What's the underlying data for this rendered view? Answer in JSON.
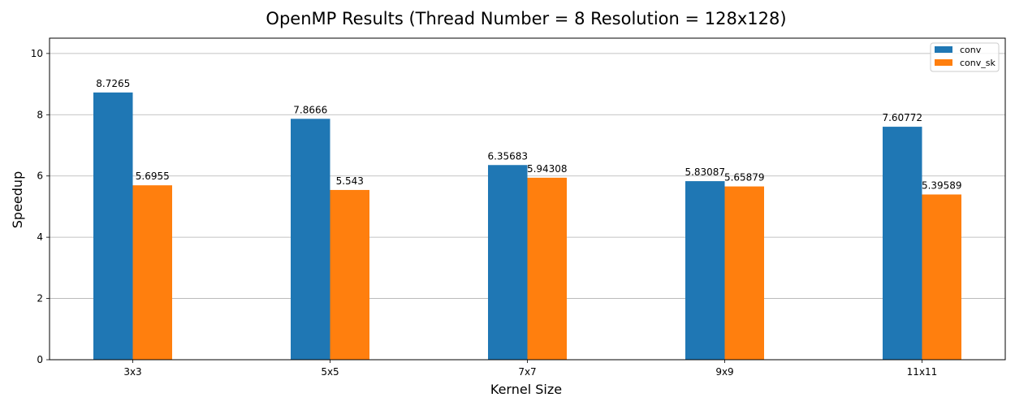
{
  "chart_data": {
    "type": "bar",
    "title": "OpenMP Results (Thread Number = 8 Resolution = 128x128)",
    "xlabel": "Kernel Size",
    "ylabel": "Speedup",
    "categories": [
      "3x3",
      "5x5",
      "7x7",
      "9x9",
      "11x11"
    ],
    "series": [
      {
        "name": "conv",
        "color": "#1f77b4",
        "values": [
          8.7265,
          7.8666,
          6.35683,
          5.83087,
          7.60772
        ],
        "labels": [
          "8.7265",
          "7.8666",
          "6.35683",
          "5.83087",
          "7.60772"
        ]
      },
      {
        "name": "conv_sk",
        "color": "#ff7f0e",
        "values": [
          5.6955,
          5.543,
          5.94308,
          5.65879,
          5.39589
        ],
        "labels": [
          "5.6955",
          "5.543",
          "5.94308",
          "5.65879",
          "5.39589"
        ]
      }
    ],
    "ylim": [
      0,
      10.5
    ],
    "yticks": [
      0,
      2,
      4,
      6,
      8,
      10
    ],
    "grid": "y",
    "legend_position": "top-right"
  }
}
